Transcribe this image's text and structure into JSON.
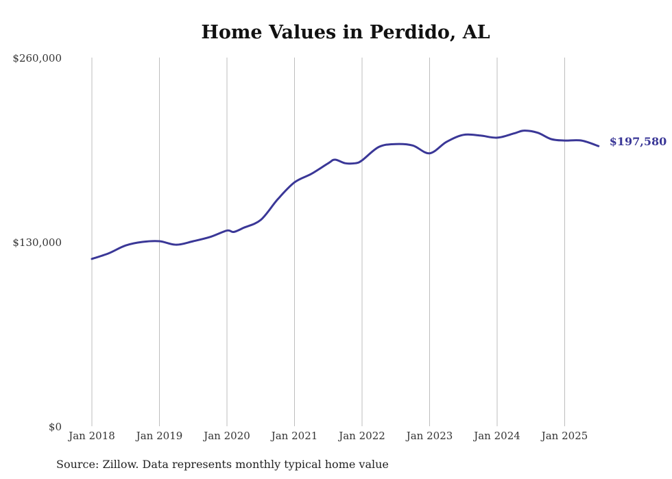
{
  "title": "Home Values in Perdido, AL",
  "source": "Source: Zillow. Data represents monthly typical home value",
  "colors": {
    "line": "#3a3797",
    "grid": "#bdbdbd",
    "text": "#333333"
  },
  "chart_data": {
    "type": "line",
    "title": "Home Values in Perdido, AL",
    "xlabel": "",
    "ylabel": "",
    "ylim": [
      0,
      260000
    ],
    "y_ticks": [
      0,
      130000,
      260000
    ],
    "y_tick_labels": [
      "$0",
      "$130,000",
      "$260,000"
    ],
    "x_ticks": [
      2018,
      2019,
      2020,
      2021,
      2022,
      2023,
      2024,
      2025
    ],
    "x_tick_labels": [
      "Jan 2018",
      "Jan 2019",
      "Jan 2020",
      "Jan 2021",
      "Jan 2022",
      "Jan 2023",
      "Jan 2024",
      "Jan 2025"
    ],
    "x_range": [
      "2018-01",
      "2025-07"
    ],
    "grid": "vertical lines at each January",
    "end_label": "$197,580",
    "series": [
      {
        "values": [
          [
            2018.0,
            118000
          ],
          [
            2018.25,
            122000
          ],
          [
            2018.5,
            127500
          ],
          [
            2018.75,
            130000
          ],
          [
            2019.0,
            130500
          ],
          [
            2019.25,
            128000
          ],
          [
            2019.5,
            130500
          ],
          [
            2019.75,
            133500
          ],
          [
            2020.0,
            138000
          ],
          [
            2020.1,
            137000
          ],
          [
            2020.25,
            140000
          ],
          [
            2020.5,
            145500
          ],
          [
            2020.75,
            160000
          ],
          [
            2021.0,
            172000
          ],
          [
            2021.25,
            178000
          ],
          [
            2021.5,
            185500
          ],
          [
            2021.6,
            188000
          ],
          [
            2021.75,
            185500
          ],
          [
            2021.9,
            185500
          ],
          [
            2022.0,
            187500
          ],
          [
            2022.25,
            197000
          ],
          [
            2022.5,
            199000
          ],
          [
            2022.75,
            198000
          ],
          [
            2023.0,
            192500
          ],
          [
            2023.25,
            200500
          ],
          [
            2023.5,
            205500
          ],
          [
            2023.75,
            205000
          ],
          [
            2024.0,
            203500
          ],
          [
            2024.25,
            206500
          ],
          [
            2024.4,
            208500
          ],
          [
            2024.6,
            207000
          ],
          [
            2024.8,
            202500
          ],
          [
            2025.0,
            201500
          ],
          [
            2025.25,
            201500
          ],
          [
            2025.5,
            197580
          ]
        ]
      }
    ]
  }
}
